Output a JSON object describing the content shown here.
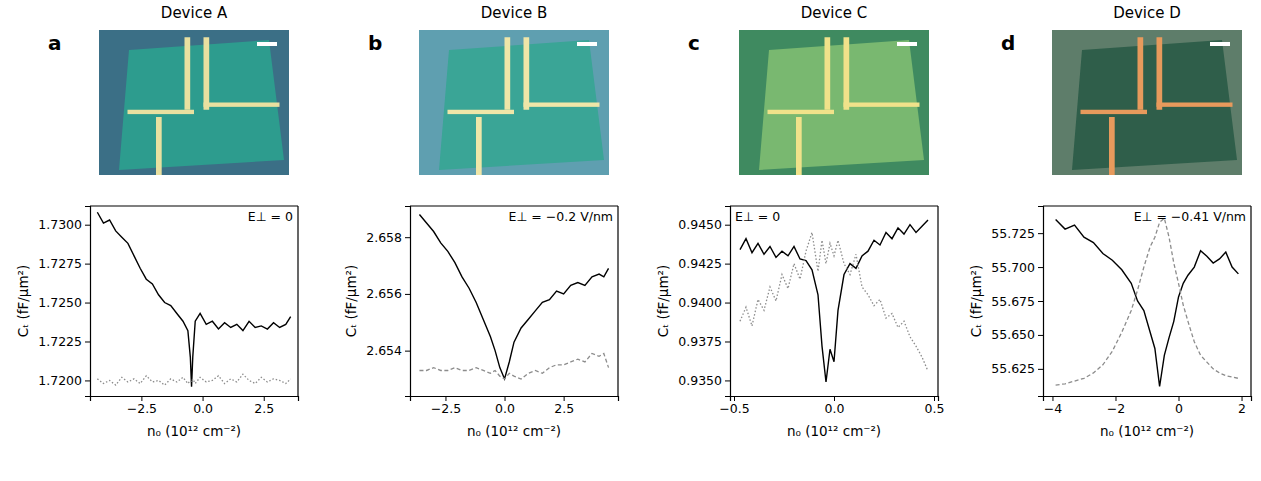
{
  "chart_data": [
    {
      "type": "line",
      "panel": "a",
      "title": "Device A",
      "annotation": "E⊥ = 0",
      "x_label": "n₀ (10¹² cm⁻²)",
      "y_label": "Cₜ (fF/μm²)",
      "xlim": [
        -4.6,
        3.9
      ],
      "xticks": [
        {
          "value": -2.5,
          "label": "−2.5"
        },
        {
          "value": 0,
          "label": "0.0"
        },
        2.5
      ],
      "ylim": [
        1.719,
        1.7312
      ],
      "yticks": [
        {
          "value": 1.72,
          "label": "1.7200"
        },
        1.7225,
        {
          "value": 1.725,
          "label": "1.7250"
        },
        1.7275,
        {
          "value": 1.73,
          "label": "1.7300"
        }
      ],
      "x": [
        -4.3,
        -4.05,
        -3.8,
        -3.55,
        -3.3,
        -3.05,
        -2.8,
        -2.55,
        -2.3,
        -2.05,
        -1.8,
        -1.55,
        -1.3,
        -1.05,
        -0.8,
        -0.6,
        -0.5,
        -0.45,
        -0.4,
        -0.3,
        -0.1,
        0.15,
        0.4,
        0.65,
        0.9,
        1.15,
        1.4,
        1.65,
        1.9,
        2.15,
        2.4,
        2.65,
        2.9,
        3.15,
        3.4,
        3.6
      ],
      "series": [
        {
          "color": "#000000",
          "line_style": "solid",
          "values": [
            1.7308,
            1.7301,
            1.7303,
            1.7296,
            1.7292,
            1.7288,
            1.728,
            1.7272,
            1.7265,
            1.7262,
            1.7255,
            1.725,
            1.7248,
            1.7243,
            1.7238,
            1.7232,
            1.7215,
            1.7196,
            1.7215,
            1.7238,
            1.7243,
            1.7236,
            1.7238,
            1.7233,
            1.7237,
            1.7234,
            1.7236,
            1.7232,
            1.7238,
            1.7234,
            1.7235,
            1.7233,
            1.7237,
            1.7234,
            1.7236,
            1.7241
          ]
        },
        {
          "color": "#8c8c8c",
          "line_style": "dotted",
          "values": [
            1.7201,
            1.7198,
            1.72,
            1.7197,
            1.7202,
            1.7199,
            1.7201,
            1.7198,
            1.7203,
            1.7199,
            1.72,
            1.7197,
            1.7201,
            1.7199,
            1.7202,
            1.7198,
            1.72,
            1.7199,
            1.7201,
            1.7198,
            1.7202,
            1.7199,
            1.72,
            1.7203,
            1.7198,
            1.7201,
            1.7199,
            1.7204,
            1.72,
            1.7198,
            1.7202,
            1.7199,
            1.7201,
            1.72,
            1.7198,
            1.7201
          ]
        }
      ]
    },
    {
      "type": "line",
      "panel": "b",
      "title": "Device B",
      "annotation": "E⊥ = −0.2 V/nm",
      "x_label": "n₀ (10¹² cm⁻²)",
      "y_label": "Cₜ (fF/μm²)",
      "xlim": [
        -4.0,
        4.8
      ],
      "xticks": [
        {
          "value": -2.5,
          "label": "−2.5"
        },
        {
          "value": 0,
          "label": "0.0"
        },
        2.5
      ],
      "ylim": [
        2.6524,
        2.6591
      ],
      "yticks": [
        2.654,
        2.656,
        2.658
      ],
      "x": [
        -3.6,
        -3.3,
        -3.0,
        -2.7,
        -2.4,
        -2.1,
        -1.8,
        -1.5,
        -1.2,
        -0.9,
        -0.6,
        -0.4,
        -0.2,
        0.0,
        0.2,
        0.4,
        0.7,
        1.0,
        1.3,
        1.6,
        1.9,
        2.2,
        2.5,
        2.8,
        3.1,
        3.4,
        3.7,
        4.0,
        4.2,
        4.4
      ],
      "series": [
        {
          "color": "#000000",
          "line_style": "solid",
          "values": [
            2.6588,
            2.6585,
            2.6582,
            2.6578,
            2.6575,
            2.6571,
            2.6566,
            2.6562,
            2.6557,
            2.6551,
            2.6545,
            2.654,
            2.6534,
            2.653,
            2.6536,
            2.6543,
            2.6548,
            2.6551,
            2.6554,
            2.6557,
            2.6558,
            2.6561,
            2.656,
            2.6563,
            2.6564,
            2.6563,
            2.6566,
            2.6567,
            2.6566,
            2.6569
          ]
        },
        {
          "color": "#8c8c8c",
          "line_style": "dashed",
          "values": [
            2.6533,
            2.6533,
            2.6534,
            2.6533,
            2.6533,
            2.6534,
            2.6533,
            2.6533,
            2.6534,
            2.6533,
            2.6532,
            2.6533,
            2.6531,
            2.653,
            2.6532,
            2.6531,
            2.653,
            2.6532,
            2.6533,
            2.6532,
            2.6534,
            2.6535,
            2.6535,
            2.6536,
            2.6537,
            2.6536,
            2.6539,
            2.6538,
            2.6539,
            2.6534
          ]
        }
      ]
    },
    {
      "type": "line",
      "panel": "c",
      "title": "Device C",
      "annotation": "E⊥ = 0",
      "x_label": "n₀ (10¹² cm⁻²)",
      "y_label": "Cₜ (fF/μm²)",
      "xlim": [
        -0.52,
        0.52
      ],
      "xticks": [
        {
          "value": -0.5,
          "label": "−0.5"
        },
        {
          "value": 0,
          "label": "0.0"
        },
        0.5
      ],
      "ylim": [
        0.934,
        0.9462
      ],
      "yticks": [
        {
          "value": 0.935,
          "label": "0.9350"
        },
        0.9375,
        {
          "value": 0.94,
          "label": "0.9400"
        },
        0.9425,
        {
          "value": 0.945,
          "label": "0.9450"
        }
      ],
      "x": [
        -0.47,
        -0.44,
        -0.41,
        -0.38,
        -0.35,
        -0.32,
        -0.29,
        -0.26,
        -0.23,
        -0.2,
        -0.17,
        -0.14,
        -0.11,
        -0.08,
        -0.06,
        -0.04,
        -0.02,
        0.0,
        0.02,
        0.05,
        0.08,
        0.11,
        0.14,
        0.17,
        0.2,
        0.23,
        0.26,
        0.29,
        0.32,
        0.35,
        0.38,
        0.41,
        0.44,
        0.47
      ],
      "series": [
        {
          "color": "#000000",
          "line_style": "solid",
          "values": [
            0.9434,
            0.9441,
            0.9432,
            0.9438,
            0.9431,
            0.9436,
            0.9429,
            0.9433,
            0.943,
            0.9436,
            0.9428,
            0.9427,
            0.9421,
            0.9405,
            0.9372,
            0.9349,
            0.937,
            0.9362,
            0.9395,
            0.9418,
            0.9425,
            0.9422,
            0.943,
            0.9433,
            0.944,
            0.9437,
            0.9445,
            0.9441,
            0.9448,
            0.9444,
            0.945,
            0.9445,
            0.9449,
            0.9453
          ]
        },
        {
          "color": "#8c8c8c",
          "line_style": "dotted",
          "values": [
            0.9388,
            0.9397,
            0.9385,
            0.9402,
            0.9395,
            0.941,
            0.9401,
            0.9418,
            0.9409,
            0.9425,
            0.9415,
            0.9433,
            0.9445,
            0.942,
            0.944,
            0.9425,
            0.9438,
            0.943,
            0.944,
            0.9425,
            0.9418,
            0.9431,
            0.941,
            0.9405,
            0.9398,
            0.9402,
            0.939,
            0.9393,
            0.9384,
            0.9388,
            0.9378,
            0.9372,
            0.9365,
            0.9356
          ]
        }
      ]
    },
    {
      "type": "line",
      "panel": "d",
      "title": "Device D",
      "annotation": "E⊥ = −0.41 V/nm",
      "x_label": "n₀ (10¹² cm⁻²)",
      "y_label": "Cₜ (fF/μm²)",
      "xlim": [
        -4.3,
        2.3
      ],
      "xticks": [
        {
          "value": -4,
          "label": "−4"
        },
        {
          "value": -2,
          "label": "−2"
        },
        0,
        2
      ],
      "ylim": [
        55.605,
        55.745
      ],
      "yticks": [
        55.625,
        {
          "value": 55.65,
          "label": "55.650"
        },
        55.675,
        {
          "value": 55.7,
          "label": "55.700"
        },
        55.725
      ],
      "x": [
        -3.9,
        -3.6,
        -3.3,
        -3.0,
        -2.7,
        -2.4,
        -2.1,
        -1.8,
        -1.5,
        -1.3,
        -1.1,
        -0.9,
        -0.75,
        -0.6,
        -0.45,
        -0.3,
        -0.15,
        0.0,
        0.15,
        0.3,
        0.5,
        0.7,
        0.9,
        1.1,
        1.3,
        1.5,
        1.7,
        1.9
      ],
      "series": [
        {
          "color": "#000000",
          "line_style": "solid",
          "values": [
            55.735,
            55.728,
            55.731,
            55.722,
            55.718,
            55.71,
            55.705,
            55.698,
            55.688,
            55.675,
            55.668,
            55.652,
            55.64,
            55.612,
            55.635,
            55.648,
            55.66,
            55.678,
            55.688,
            55.694,
            55.7,
            55.712,
            55.708,
            55.703,
            55.706,
            55.711,
            55.7,
            55.695
          ]
        },
        {
          "color": "#8c8c8c",
          "line_style": "dashed",
          "values": [
            55.613,
            55.614,
            55.616,
            55.618,
            55.622,
            55.628,
            55.638,
            55.652,
            55.668,
            55.683,
            55.7,
            55.715,
            55.722,
            55.733,
            55.736,
            55.722,
            55.703,
            55.688,
            55.672,
            55.66,
            55.645,
            55.635,
            55.63,
            55.625,
            55.622,
            55.62,
            55.619,
            55.618
          ]
        }
      ]
    }
  ]
}
